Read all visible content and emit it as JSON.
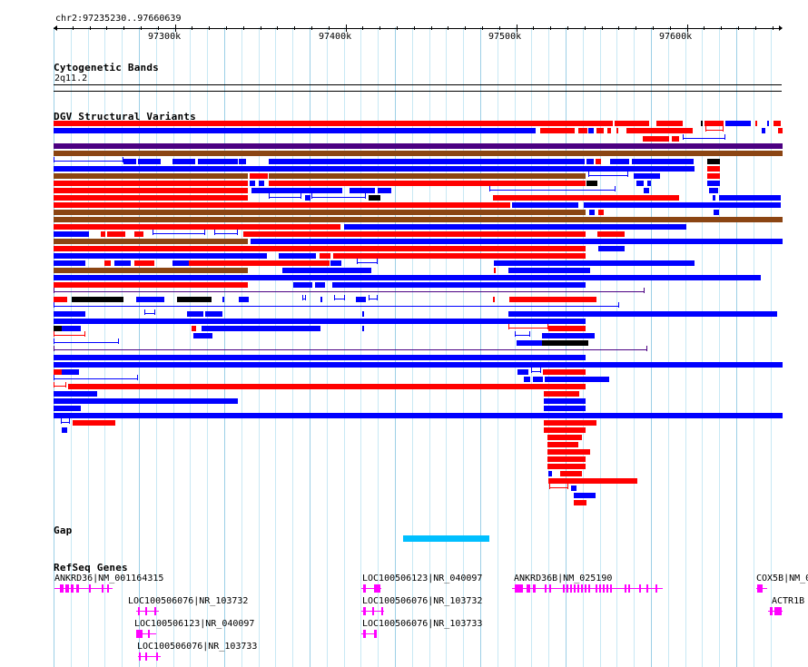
{
  "location": "chr2:97235230..97660639",
  "ruler": {
    "labels": [
      "97300k",
      "97400k",
      "97500k",
      "97600k"
    ]
  },
  "tracks": {
    "cytoband": {
      "title": "Cytogenetic Bands",
      "band_label": "2q11.2"
    },
    "dgv": {
      "title": "DGV Structural Variants"
    },
    "gap": {
      "title": "Gap"
    },
    "refseq": {
      "title": "RefSeq Genes",
      "genes": [
        "ANKRD36|NM_001164315",
        "LOC100506076|NR_103732",
        "LOC100506123|NR_040097",
        "LOC100506076|NR_103733",
        "LOC100506123|NR_040097",
        "LOC100506076|NR_103732",
        "LOC100506076|NR_103733",
        "ANKRD36B|NM_025190",
        "COX5B|NM_0",
        "ACTR1B"
      ]
    }
  },
  "colors": {
    "gain": "#ff0000",
    "loss": "#0000ff",
    "inversion": "#8b4513",
    "complex": "#4b0082",
    "other": "#000000",
    "gap": "#00bfff",
    "gene": "#ff00ff",
    "grid": "#c8e8f4"
  }
}
